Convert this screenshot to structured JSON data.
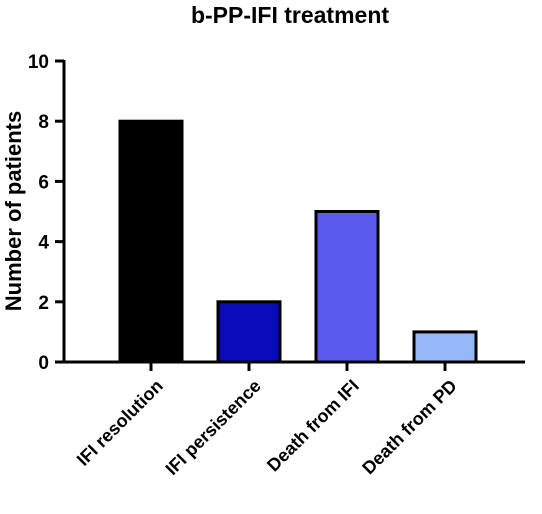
{
  "chart_data": {
    "type": "bar",
    "title": "b-PP-IFI treatment",
    "xlabel": "",
    "ylabel": "Number of patients",
    "ylim": [
      0,
      10
    ],
    "yticks": [
      0,
      2,
      4,
      6,
      8,
      10
    ],
    "grid": false,
    "categories": [
      "IFI resolution",
      "IFI persistence",
      "Death from IFI",
      "Death from PD"
    ],
    "values": [
      8,
      2,
      5,
      1
    ],
    "colors": [
      "#000000",
      "#0a0ab8",
      "#5a5aef",
      "#94b8f5"
    ],
    "edge_color": "#000000"
  }
}
